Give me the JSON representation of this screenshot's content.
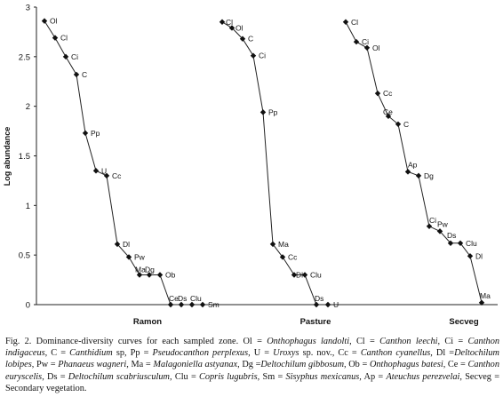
{
  "chart_data": {
    "type": "line",
    "ylabel": "Log abundance",
    "ylim": [
      0,
      3
    ],
    "yticks": [
      0,
      0.5,
      1,
      1.5,
      2,
      2.5,
      3
    ],
    "ytick_labels": [
      "0",
      "0.5",
      "1",
      "1.5",
      "2",
      "2.5",
      "3"
    ],
    "grid": false,
    "marker": "diamond",
    "series": [
      {
        "name": "Ramon",
        "points": [
          {
            "label": "Ol",
            "y": 2.86
          },
          {
            "label": "Cl",
            "y": 2.69
          },
          {
            "label": "Ci",
            "y": 2.5
          },
          {
            "label": "C",
            "y": 2.32
          },
          {
            "label": "Pp",
            "y": 1.73
          },
          {
            "label": "U",
            "y": 1.35
          },
          {
            "label": "Cc",
            "y": 1.3
          },
          {
            "label": "Dl",
            "y": 0.61
          },
          {
            "label": "Pw",
            "y": 0.48
          },
          {
            "label": "Ma",
            "y": 0.3
          },
          {
            "label": "Dg",
            "y": 0.3
          },
          {
            "label": "Ob",
            "y": 0.3
          },
          {
            "label": "Ce",
            "y": 0.0
          },
          {
            "label": "Ds",
            "y": 0.0
          },
          {
            "label": "Clu",
            "y": 0.0
          },
          {
            "label": "Sm",
            "y": 0.0
          }
        ]
      },
      {
        "name": "Pasture",
        "points": [
          {
            "label": "Cl",
            "y": 2.85
          },
          {
            "label": "Ol",
            "y": 2.79
          },
          {
            "label": "C",
            "y": 2.68
          },
          {
            "label": "Ci",
            "y": 2.51
          },
          {
            "label": "Pp",
            "y": 1.94
          },
          {
            "label": "Ma",
            "y": 0.61
          },
          {
            "label": "Cc",
            "y": 0.48
          },
          {
            "label": "Dl",
            "y": 0.3
          },
          {
            "label": "Clu",
            "y": 0.3
          },
          {
            "label": "Ds",
            "y": 0.0
          },
          {
            "label": "U",
            "y": 0.0
          }
        ]
      },
      {
        "name": "Secveg",
        "points": [
          {
            "label": "Cl",
            "y": 2.85
          },
          {
            "label": "Ci",
            "y": 2.65
          },
          {
            "label": "Ol",
            "y": 2.59
          },
          {
            "label": "Cc",
            "y": 2.13
          },
          {
            "label": "Ce",
            "y": 1.9
          },
          {
            "label": "C",
            "y": 1.82
          },
          {
            "label": "Ap",
            "y": 1.34
          },
          {
            "label": "Dg",
            "y": 1.3
          },
          {
            "label": "Ci",
            "y": 0.79
          },
          {
            "label": "Pw",
            "y": 0.74
          },
          {
            "label": "Ds",
            "y": 0.62
          },
          {
            "label": "Clu",
            "y": 0.62
          },
          {
            "label": "Dl",
            "y": 0.49
          },
          {
            "label": "Ma",
            "y": 0.02
          }
        ]
      }
    ]
  },
  "caption": [
    {
      "t": "Fig. 2. Dominance-diversity curves for each sampled zone. Ol = "
    },
    {
      "t": "Onthophagus landolti",
      "i": true
    },
    {
      "t": ", Cl = "
    },
    {
      "t": "Canthon leechi",
      "i": true
    },
    {
      "t": ", Ci = "
    },
    {
      "t": "Canthon indigaceus",
      "i": true
    },
    {
      "t": ", C = "
    },
    {
      "t": "Canthidium",
      "i": true
    },
    {
      "t": " sp, Pp = "
    },
    {
      "t": "Pseudocanthon perplexus",
      "i": true
    },
    {
      "t": ", U = "
    },
    {
      "t": "Uroxys",
      "i": true
    },
    {
      "t": " sp. nov., Cc = "
    },
    {
      "t": "Canthon cyanellus",
      "i": true
    },
    {
      "t": ", Dl ="
    },
    {
      "t": "Deltochilum lobipes",
      "i": true
    },
    {
      "t": ", Pw = "
    },
    {
      "t": "Phanaeus wagneri",
      "i": true
    },
    {
      "t": ", Ma = "
    },
    {
      "t": "Malagoniella astyanax",
      "i": true
    },
    {
      "t": ", Dg ="
    },
    {
      "t": "Deltochilum gibbosum",
      "i": true
    },
    {
      "t": ", Ob = "
    },
    {
      "t": "Onthophagus batesi",
      "i": true
    },
    {
      "t": ", Ce = "
    },
    {
      "t": "Canthon euryscelis",
      "i": true
    },
    {
      "t": ", Ds = "
    },
    {
      "t": "Deltochilum scabriusculum",
      "i": true
    },
    {
      "t": ", Clu = "
    },
    {
      "t": "Copris lugubris",
      "i": true
    },
    {
      "t": ", Sm = "
    },
    {
      "t": "Sisyphus mexicanus",
      "i": true
    },
    {
      "t": ", Ap = "
    },
    {
      "t": "Ateuchus perezvelai",
      "i": true
    },
    {
      "t": ", Secveg = Secondary vegetation."
    }
  ]
}
